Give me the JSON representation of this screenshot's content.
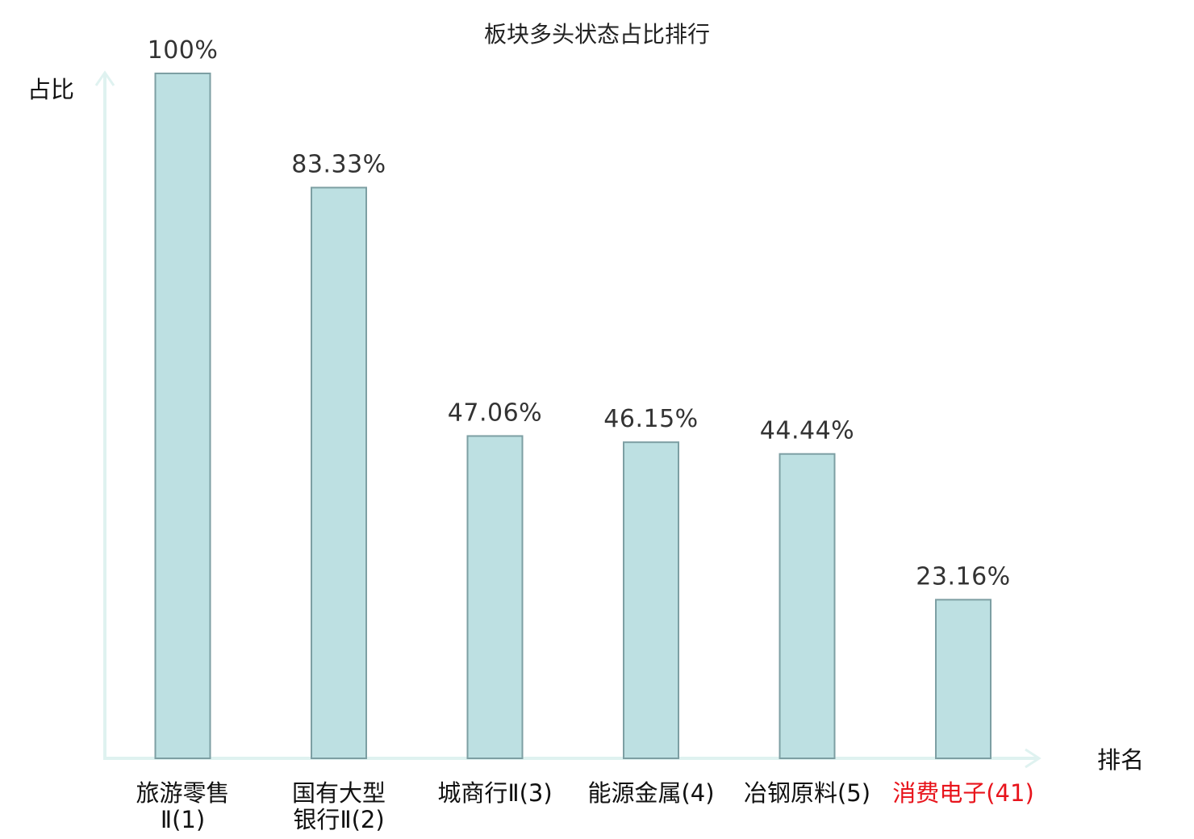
{
  "chart_data": {
    "type": "bar",
    "title": "板块多头状态占比排行",
    "xlabel": "排名",
    "ylabel": "占比",
    "ylim": [
      0,
      100
    ],
    "grid": false,
    "legend": "none",
    "bar_color": "#bde0e2",
    "bar_edge_color": "#7d9fa3",
    "axis_color": "#dff2f0",
    "highlight_color": "#e8141c",
    "categories": [
      {
        "name_lines": [
          "旅游零售",
          "Ⅱ(1)"
        ],
        "highlight": false
      },
      {
        "name_lines": [
          "国有大型",
          "银行Ⅱ(2)"
        ],
        "highlight": false
      },
      {
        "name_lines": [
          "城商行Ⅱ(3)"
        ],
        "highlight": false
      },
      {
        "name_lines": [
          "能源金属(4)"
        ],
        "highlight": false
      },
      {
        "name_lines": [
          "冶钢原料(5)"
        ],
        "highlight": false
      },
      {
        "name_lines": [
          "消费电子(41)"
        ],
        "highlight": true
      }
    ],
    "values": [
      100,
      83.33,
      47.06,
      46.15,
      44.44,
      23.16
    ],
    "value_labels": [
      "100%",
      "83.33%",
      "47.06%",
      "46.15%",
      "44.44%",
      "23.16%"
    ]
  }
}
